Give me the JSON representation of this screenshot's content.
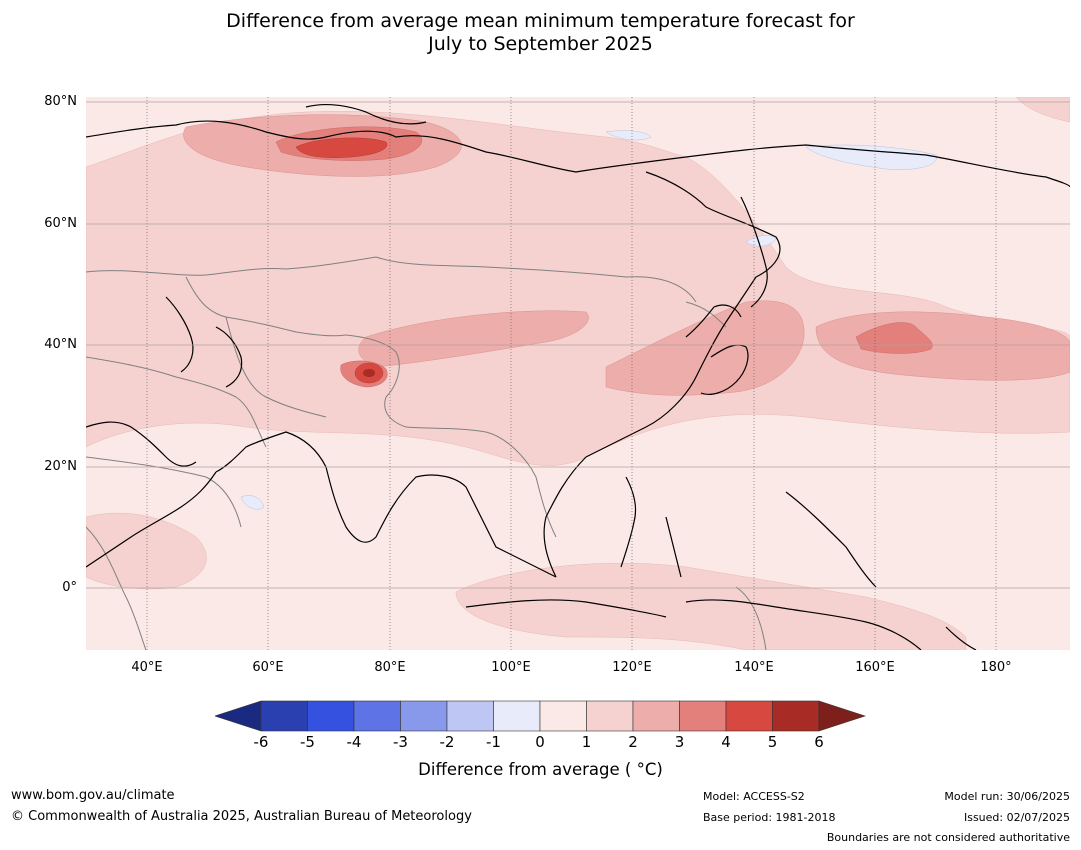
{
  "title": {
    "line1": "Difference from average mean minimum temperature forecast for",
    "line2": "July to September 2025"
  },
  "map": {
    "lat_labels": [
      "80°N",
      "60°N",
      "40°N",
      "20°N",
      "0°"
    ],
    "lon_labels": [
      "40°E",
      "60°E",
      "80°E",
      "100°E",
      "120°E",
      "140°E",
      "160°E",
      "180°"
    ],
    "colors": {
      "background": "#fbe9e7",
      "anom_1_2": "#f5d2cf",
      "anom_2_3": "#edadaa",
      "anom_3_4": "#e3807b",
      "anom_4_5": "#d64840",
      "anom_minus1_0": "#e8ecfa",
      "coast": "#000000",
      "border": "#808080",
      "grid": "#555555"
    }
  },
  "colorbar": {
    "ticks": [
      "-6",
      "-5",
      "-4",
      "-3",
      "-2",
      "-1",
      "0",
      "1",
      "2",
      "3",
      "4",
      "5",
      "6"
    ],
    "colors": [
      "#1a2a80",
      "#2a3fb0",
      "#3451e0",
      "#5e74e6",
      "#8898eb",
      "#bec7f4",
      "#e8ebfa",
      "#fbe9e7",
      "#f5d2cf",
      "#edadaa",
      "#e3807b",
      "#d64840",
      "#a82b25",
      "#7d1f1a"
    ],
    "label": "Difference from average ( °C)"
  },
  "footer": {
    "website": "www.bom.gov.au/climate",
    "copyright": "© Commonwealth of Australia 2025, Australian Bureau of Meteorology",
    "model": "Model: ACCESS-S2",
    "base_period": "Base period: 1981-2018",
    "model_run": "Model run: 30/06/2025",
    "issued": "Issued: 02/07/2025",
    "disclaimer": "Boundaries are not considered authoritative"
  }
}
